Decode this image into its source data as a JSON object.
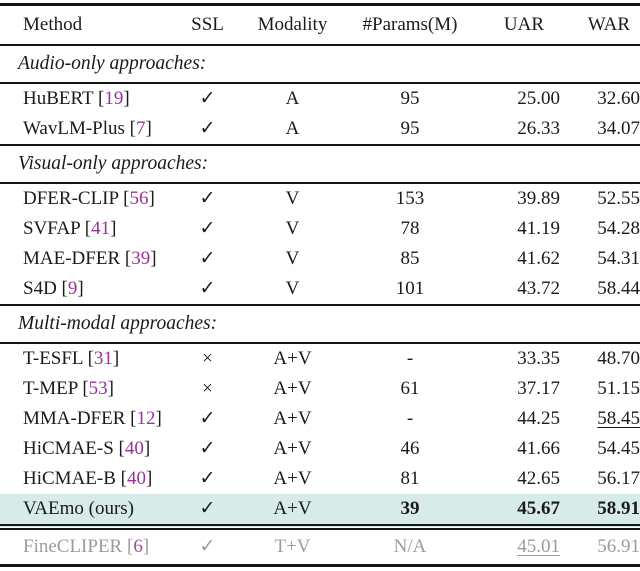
{
  "punct": {
    "open": "[",
    "close": "]"
  },
  "colors": {
    "highlight_row": "#d7ebe8",
    "citation": "#993299",
    "muted_text": "#9c9c9c",
    "rule": "#141414",
    "text": "#1b1b1b"
  },
  "header": {
    "method": "Method",
    "ssl": "SSL",
    "modality": "Modality",
    "params": "#Params(M)",
    "uar": "UAR",
    "war": "WAR"
  },
  "sections": [
    {
      "title": "Audio-only approaches:",
      "rows": [
        {
          "name": "HuBERT",
          "cite": "19",
          "ssl": "✓",
          "modality": "A",
          "params": "95",
          "uar": "25.00",
          "war": "32.60"
        },
        {
          "name": "WavLM-Plus",
          "cite": "7",
          "ssl": "✓",
          "modality": "A",
          "params": "95",
          "uar": "26.33",
          "war": "34.07"
        }
      ]
    },
    {
      "title": "Visual-only approaches:",
      "rows": [
        {
          "name": "DFER-CLIP",
          "cite": "56",
          "ssl": "✓",
          "modality": "V",
          "params": "153",
          "uar": "39.89",
          "war": "52.55"
        },
        {
          "name": "SVFAP",
          "cite": "41",
          "ssl": "✓",
          "modality": "V",
          "params": "78",
          "uar": "41.19",
          "war": "54.28"
        },
        {
          "name": "MAE-DFER",
          "cite": "39",
          "ssl": "✓",
          "modality": "V",
          "params": "85",
          "uar": "41.62",
          "war": "54.31"
        },
        {
          "name": "S4D",
          "cite": "9",
          "ssl": "✓",
          "modality": "V",
          "params": "101",
          "uar": "43.72",
          "war": "58.44"
        }
      ]
    },
    {
      "title": "Multi-modal approaches:",
      "rows": [
        {
          "name": "T-ESFL",
          "cite": "31",
          "ssl": "×",
          "modality": "A+V",
          "params": "-",
          "uar": "33.35",
          "war": "48.70"
        },
        {
          "name": "T-MEP",
          "cite": "53",
          "ssl": "×",
          "modality": "A+V",
          "params": "61",
          "uar": "37.17",
          "war": "51.15"
        },
        {
          "name": "MMA-DFER",
          "cite": "12",
          "ssl": "✓",
          "modality": "A+V",
          "params": "-",
          "uar": "44.25",
          "war": "58.45"
        },
        {
          "name": "HiCMAE-S",
          "cite": "40",
          "ssl": "✓",
          "modality": "A+V",
          "params": "46",
          "uar": "41.66",
          "war": "54.45"
        },
        {
          "name": "HiCMAE-B",
          "cite": "40",
          "ssl": "✓",
          "modality": "A+V",
          "params": "81",
          "uar": "42.65",
          "war": "56.17"
        },
        {
          "name": "VAEmo (ours)",
          "ssl": "✓",
          "modality": "A+V",
          "params": "39",
          "uar": "45.67",
          "war": "58.91"
        }
      ]
    }
  ],
  "footer": {
    "name": "FineCLIPER",
    "cite": "6",
    "ssl": "✓",
    "modality": "T+V",
    "params": "N/A",
    "uar": "45.01",
    "war": "56.91"
  }
}
